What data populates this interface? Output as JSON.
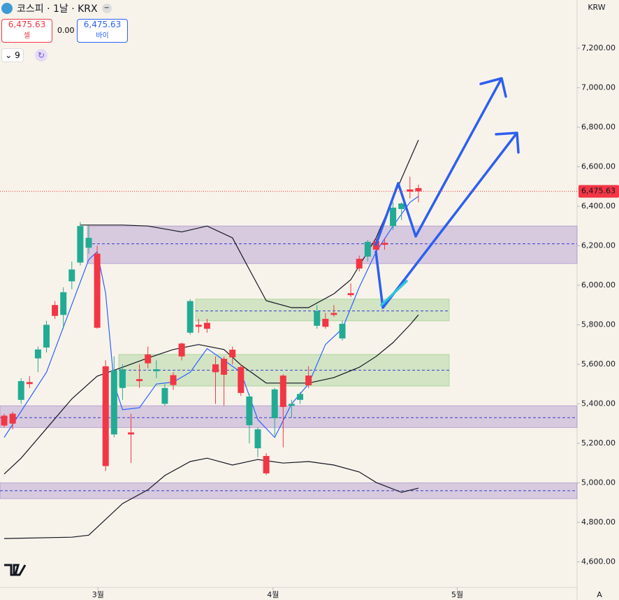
{
  "header": {
    "title": "코스피 · 1날 · KRX",
    "sell_price": "6,475.63",
    "sell_label": "셀",
    "spread": "0.00",
    "buy_price": "6,475.63",
    "buy_label": "바이",
    "indicator_count": "9"
  },
  "chart_data": {
    "type": "candlestick",
    "currency": "KRW",
    "last_price": {
      "value": 6475.63,
      "label": "6,475.63"
    },
    "scale_mode": "A",
    "colors": {
      "up": "#22ab94",
      "down": "#f23645"
    },
    "ylim": [
      4407,
      7444
    ],
    "yticks": [
      {
        "value": 4600,
        "label": "4,600.00"
      },
      {
        "value": 4800,
        "label": "4,800.00"
      },
      {
        "value": 5000,
        "label": "5,000.00"
      },
      {
        "value": 5200,
        "label": "5,200.00"
      },
      {
        "value": 5400,
        "label": "5,400.00"
      },
      {
        "value": 5600,
        "label": "5,600.00"
      },
      {
        "value": 5800,
        "label": "5,800.00"
      },
      {
        "value": 6000,
        "label": "6,000.00"
      },
      {
        "value": 6200,
        "label": "6,200.00"
      },
      {
        "value": 6400,
        "label": "6,400.00"
      },
      {
        "value": 6600,
        "label": "6,600.00"
      },
      {
        "value": 6800,
        "label": "6,800.00"
      },
      {
        "value": 7000,
        "label": "7,000.00"
      },
      {
        "value": 7200,
        "label": "7,200.00"
      }
    ],
    "xticks": [
      {
        "value": 11.1,
        "label": "3월"
      },
      {
        "value": 31.8,
        "label": "4월"
      },
      {
        "value": 53.6,
        "label": "5월"
      }
    ],
    "ohlc": [
      [
        5340,
        5350,
        5280,
        5290
      ],
      [
        5350,
        5360,
        5270,
        5300
      ],
      [
        5420,
        5530,
        5400,
        5515
      ],
      [
        5510,
        5540,
        5480,
        5500
      ],
      [
        5630,
        5690,
        5560,
        5675
      ],
      [
        5685,
        5820,
        5660,
        5800
      ],
      [
        5900,
        5920,
        5830,
        5845
      ],
      [
        5850,
        5990,
        5780,
        5965
      ],
      [
        6020,
        6120,
        5980,
        6080
      ],
      [
        6115,
        6320,
        6100,
        6300
      ],
      [
        6190,
        6300,
        6160,
        6240
      ],
      [
        6160,
        6200,
        5780,
        5785
      ],
      [
        5590,
        5620,
        5060,
        5085
      ],
      [
        5245,
        5640,
        5230,
        5570
      ],
      [
        5480,
        5600,
        5420,
        5575
      ],
      [
        5255,
        5350,
        5100,
        5245
      ],
      [
        5525,
        5600,
        5480,
        5515
      ],
      [
        5650,
        5690,
        5580,
        5605
      ],
      [
        5565,
        5620,
        5530,
        5575
      ],
      [
        5400,
        5500,
        5390,
        5480
      ],
      [
        5545,
        5560,
        5470,
        5495
      ],
      [
        5705,
        5710,
        5620,
        5640
      ],
      [
        5760,
        5930,
        5750,
        5920
      ],
      [
        5800,
        5830,
        5760,
        5790
      ],
      [
        5810,
        5830,
        5760,
        5780
      ],
      [
        5600,
        5640,
        5400,
        5560
      ],
      [
        5628,
        5640,
        5390,
        5547
      ],
      [
        5674,
        5690,
        5600,
        5635
      ],
      [
        5586,
        5600,
        5440,
        5455
      ],
      [
        5292,
        5450,
        5200,
        5437
      ],
      [
        5175,
        5280,
        5130,
        5271
      ],
      [
        5136,
        5150,
        5040,
        5048
      ],
      [
        5327,
        5480,
        5240,
        5473
      ],
      [
        5543,
        5550,
        5180,
        5384
      ],
      [
        5390,
        5420,
        5330,
        5400
      ],
      [
        5420,
        5460,
        5400,
        5450
      ],
      [
        5543,
        5590,
        5480,
        5494
      ],
      [
        5795,
        5900,
        5780,
        5869
      ],
      [
        5830,
        5860,
        5780,
        5790
      ],
      [
        5860,
        5900,
        5840,
        5850
      ],
      [
        5731,
        5820,
        5720,
        5805
      ],
      [
        5960,
        6010,
        5940,
        5950
      ],
      [
        6134,
        6150,
        6070,
        6085
      ],
      [
        6145,
        6230,
        6120,
        6220
      ],
      [
        6223,
        6240,
        6170,
        6180
      ],
      [
        6215,
        6240,
        6180,
        6205
      ],
      [
        6300,
        6420,
        6280,
        6393
      ],
      [
        6386,
        6420,
        6330,
        6414
      ],
      [
        6485,
        6550,
        6440,
        6474
      ],
      [
        6492,
        6510,
        6420,
        6475.63
      ]
    ],
    "series": [
      {
        "color": "#131722",
        "x": [
          9,
          14,
          17,
          21,
          24,
          27,
          29,
          31,
          34,
          36,
          39,
          41,
          44,
          47,
          49
        ],
        "values": [
          6305,
          6305,
          6300,
          6270,
          6300,
          6240,
          6080,
          5922,
          5887,
          5887,
          5957,
          6028,
          6240,
          6540,
          6735
        ]
      },
      {
        "color": "#131722",
        "x": [
          0,
          2,
          5,
          8,
          11,
          14,
          17,
          20,
          23,
          26,
          28,
          31,
          33,
          36,
          39,
          42,
          44,
          46,
          48,
          49
        ],
        "values": [
          5045,
          5125,
          5275,
          5425,
          5540,
          5585,
          5632,
          5675,
          5700,
          5675,
          5597,
          5505,
          5505,
          5505,
          5533,
          5585,
          5640,
          5710,
          5800,
          5850
        ]
      },
      {
        "color": "#131722",
        "x": [
          0,
          8,
          10,
          14,
          17,
          19,
          22,
          24,
          27,
          30,
          33,
          36,
          39,
          42,
          44,
          47,
          49
        ],
        "values": [
          4718,
          4725,
          4735,
          4895,
          4965,
          5037,
          5108,
          5125,
          5090,
          5118,
          5100,
          5108,
          5090,
          5055,
          5002,
          4952,
          4973
        ]
      },
      {
        "color": "#2962ff",
        "x": [
          0,
          5,
          10,
          11,
          12,
          13,
          14,
          16,
          18,
          20,
          22,
          24,
          26,
          28,
          30,
          32,
          34,
          36,
          38,
          40,
          42,
          44,
          46,
          48,
          49
        ],
        "values": [
          5230,
          5560,
          6130,
          6170,
          5960,
          5500,
          5370,
          5380,
          5500,
          5510,
          5560,
          5680,
          5620,
          5560,
          5320,
          5230,
          5400,
          5500,
          5700,
          5780,
          5990,
          6170,
          6300,
          6420,
          6450
        ]
      }
    ],
    "zones": [
      {
        "low": 6110,
        "high": 6300,
        "mid": 6210,
        "color": "#9c7fc9"
      },
      {
        "low": 5820,
        "high": 5930,
        "mid": 5870,
        "color": "#8cc97f"
      },
      {
        "low": 5490,
        "high": 5650,
        "mid": 5570,
        "color": "#8cc97f"
      },
      {
        "low": 5280,
        "high": 5390,
        "mid": 5330,
        "color": "#9c7fc9"
      },
      {
        "low": 4920,
        "high": 5000,
        "mid": 4960,
        "color": "#9c7fc9"
      }
    ]
  }
}
